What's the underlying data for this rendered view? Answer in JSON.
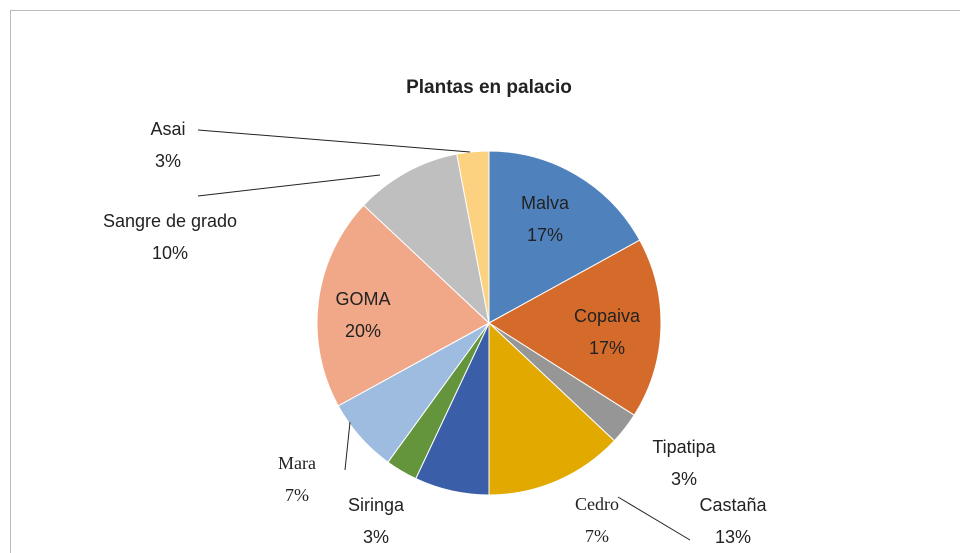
{
  "chart_data": {
    "type": "pie",
    "title": "Plantas en palacio",
    "categories": [
      "Malva",
      "Copaiva",
      "Tipatipa",
      "Castaña",
      "Cedro",
      "Siringa",
      "Mara",
      "GOMA",
      "Sangre de grado",
      "Asai"
    ],
    "values": [
      17,
      17,
      3,
      13,
      7,
      3,
      7,
      20,
      10,
      3
    ],
    "value_labels": [
      "17%",
      "17%",
      "3%",
      "13%",
      "7%",
      "3%",
      "7%",
      "20%",
      "10%",
      "3%"
    ],
    "colors": [
      "#4f81bd",
      "#d46b2a",
      "#969696",
      "#e2a900",
      "#3b5ea8",
      "#64953d",
      "#9ebbe0",
      "#f0a888",
      "#bfbfbf",
      "#fcd17f"
    ]
  }
}
